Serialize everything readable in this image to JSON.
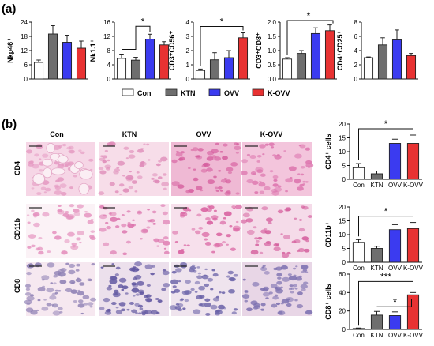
{
  "figure": {
    "panel_a_label": "(a)",
    "panel_b_label": "(b)",
    "groups": [
      "Con",
      "KTN",
      "OVV",
      "K-OVV"
    ],
    "group_colors": [
      "#ffffff",
      "#6e6e6e",
      "#3b3bf0",
      "#e83232"
    ]
  },
  "histology": {
    "columns": [
      "Con",
      "KTN",
      "OVV",
      "K-OVV"
    ],
    "rows": [
      "CD4",
      "CD11b",
      "CD8"
    ]
  },
  "chart_data": [
    {
      "id": "a1",
      "type": "bar",
      "ylabel": "Nkp46⁺",
      "categories": [
        "Con",
        "KTN",
        "OVV",
        "K-OVV"
      ],
      "values": [
        7,
        19,
        15.5,
        13
      ],
      "errors": [
        1,
        3.5,
        3,
        3
      ],
      "ylim": [
        0,
        24
      ],
      "yticks": [
        "0",
        "6",
        "12",
        "18",
        "24"
      ],
      "significance": []
    },
    {
      "id": "a2",
      "type": "bar",
      "ylabel": "Nk1.1⁺",
      "categories": [
        "Con",
        "KTN",
        "OVV",
        "K-OVV"
      ],
      "values": [
        5.8,
        5.3,
        11.2,
        9.6
      ],
      "errors": [
        1.2,
        0.8,
        1.4,
        0.9
      ],
      "ylim": [
        0,
        16
      ],
      "yticks": [
        "0",
        "4",
        "8",
        "12",
        "16"
      ],
      "significance": [
        {
          "label": "*",
          "kind": "pair"
        }
      ]
    },
    {
      "id": "a3",
      "type": "bar",
      "ylabel": "CD3⁺CD56⁺",
      "categories": [
        "Con",
        "KTN",
        "OVV",
        "K-OVV"
      ],
      "values": [
        0.6,
        1.35,
        1.5,
        2.9
      ],
      "errors": [
        0.1,
        0.5,
        0.5,
        0.35
      ],
      "ylim": [
        0,
        4
      ],
      "yticks": [
        "0",
        "1",
        "2",
        "3",
        "4"
      ],
      "significance": [
        {
          "label": "*",
          "kind": "bracket"
        }
      ]
    },
    {
      "id": "a4",
      "type": "bar",
      "ylabel": "CD3⁺CD8⁺",
      "categories": [
        "Con",
        "KTN",
        "OVV",
        "K-OVV"
      ],
      "values": [
        0.7,
        0.9,
        1.6,
        1.7
      ],
      "errors": [
        0.05,
        0.1,
        0.2,
        0.2
      ],
      "ylim": [
        0,
        2.0
      ],
      "yticks": [
        "0.0",
        "0.5",
        "1.0",
        "1.5",
        "2.0"
      ],
      "significance": [
        {
          "label": "*",
          "kind": "arrow"
        }
      ]
    },
    {
      "id": "a5",
      "type": "bar",
      "ylabel": "CD4⁺CD25⁺",
      "categories": [
        "Con",
        "KTN",
        "OVV",
        "K-OVV"
      ],
      "values": [
        3.0,
        4.8,
        5.5,
        3.3
      ],
      "errors": [
        0.1,
        1.0,
        1.4,
        0.3
      ],
      "ylim": [
        0,
        8
      ],
      "yticks": [
        "0",
        "2",
        "4",
        "6",
        "8"
      ],
      "significance": []
    },
    {
      "id": "b1",
      "type": "bar",
      "ylabel": "CD4⁺ cells",
      "categories": [
        "Con",
        "KTN",
        "OVV",
        "K-OVV"
      ],
      "values": [
        4.2,
        2.0,
        13.0,
        13.0
      ],
      "errors": [
        1.5,
        1.0,
        1.5,
        3.0
      ],
      "ylim": [
        0,
        20
      ],
      "yticks": [
        "0",
        "5",
        "10",
        "15",
        "20"
      ],
      "significance": [
        {
          "label": "*",
          "kind": "bracket"
        }
      ]
    },
    {
      "id": "b2",
      "type": "bar",
      "ylabel": "CD11b⁺",
      "categories": [
        "Con",
        "KTN",
        "OVV",
        "K-OVV"
      ],
      "values": [
        7.2,
        5.0,
        11.8,
        12.2
      ],
      "errors": [
        1.0,
        0.8,
        1.8,
        2.2
      ],
      "ylim": [
        0,
        20
      ],
      "yticks": [
        "0",
        "5",
        "10",
        "15",
        "20"
      ],
      "significance": [
        {
          "label": "*",
          "kind": "bracket"
        }
      ]
    },
    {
      "id": "b3",
      "type": "bar",
      "ylabel": "CD8⁺ cells",
      "categories": [
        "Con",
        "KTN",
        "OVV",
        "K-OVV"
      ],
      "values": [
        1,
        15.5,
        15.0,
        37.5
      ],
      "errors": [
        0.5,
        4.0,
        4.0,
        2.5
      ],
      "ylim": [
        0,
        60
      ],
      "yticks": [
        "0",
        "20",
        "40",
        "60"
      ],
      "significance": [
        {
          "label": "***",
          "kind": "bracket"
        },
        {
          "label": "*",
          "kind": "bracket"
        }
      ]
    }
  ]
}
